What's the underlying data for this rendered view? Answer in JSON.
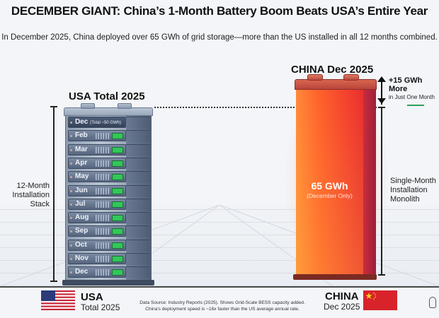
{
  "header": {
    "title": "DECEMBER GIANT: China’s 1-Month Battery Boom Beats USA’s Entire Year",
    "subtitle": "In December 2025, China deployed over 65 GWh of grid storage—more than the US installed in all 12 months combined."
  },
  "chart_data": {
    "type": "bar",
    "title": "DECEMBER GIANT: China’s 1-Month Battery Boom Beats USA’s Entire Year",
    "unit": "GWh",
    "categories": [
      "USA Total 2025",
      "CHINA Dec 2025"
    ],
    "values": [
      50,
      65
    ],
    "difference": 15,
    "usa": {
      "label": "USA Total 2025",
      "bracket_label": "12-Month Installation Stack",
      "months": [
        "Dec (Total ~50 GWh)",
        "Feb",
        "Mar",
        "Apr",
        "May",
        "Jun",
        "Jul",
        "Aug",
        "Sep",
        "Oct",
        "Nov",
        "Dec"
      ],
      "top_module_month": "Dec",
      "top_module_note": "(Total ~50 GWh)",
      "color": "#56657e"
    },
    "china": {
      "label": "CHINA Dec 2025",
      "value_label": "65 GWh",
      "value_note": "(December Only)",
      "bracket_label": "Single-Month Installation Monolith",
      "color": "#f0402f"
    },
    "annotation": {
      "main": "+15 GWh More",
      "sub": "in Just One Month"
    }
  },
  "labels": {
    "usa_left_line1": "12-Month",
    "usa_left_line2": "Installation Stack",
    "china_right_line1": "Single-Month",
    "china_right_line2": "Installation",
    "china_right_line3": "Monolith"
  },
  "footer": {
    "usa_country": "USA",
    "usa_period": "Total 2025",
    "china_country": "CHINA",
    "china_period": "Dec 2025",
    "source_line1": "Data Source: Industry Reports (2025). Shows Grid-Scale BESS capacity added.",
    "source_line2": "China's deployment speed is ~16x faster than the US average annual rate."
  },
  "icons": {
    "usa_flag": "usa-flag-icon",
    "china_flag": "china-flag-icon",
    "bulb": "lightbulb-icon"
  },
  "colors": {
    "background": "#f3f5f8",
    "usa_rack": "#56657e",
    "battery_green": "#32c75a",
    "china_battery": "#f0402f",
    "highlight_green": "#2fa05a"
  }
}
